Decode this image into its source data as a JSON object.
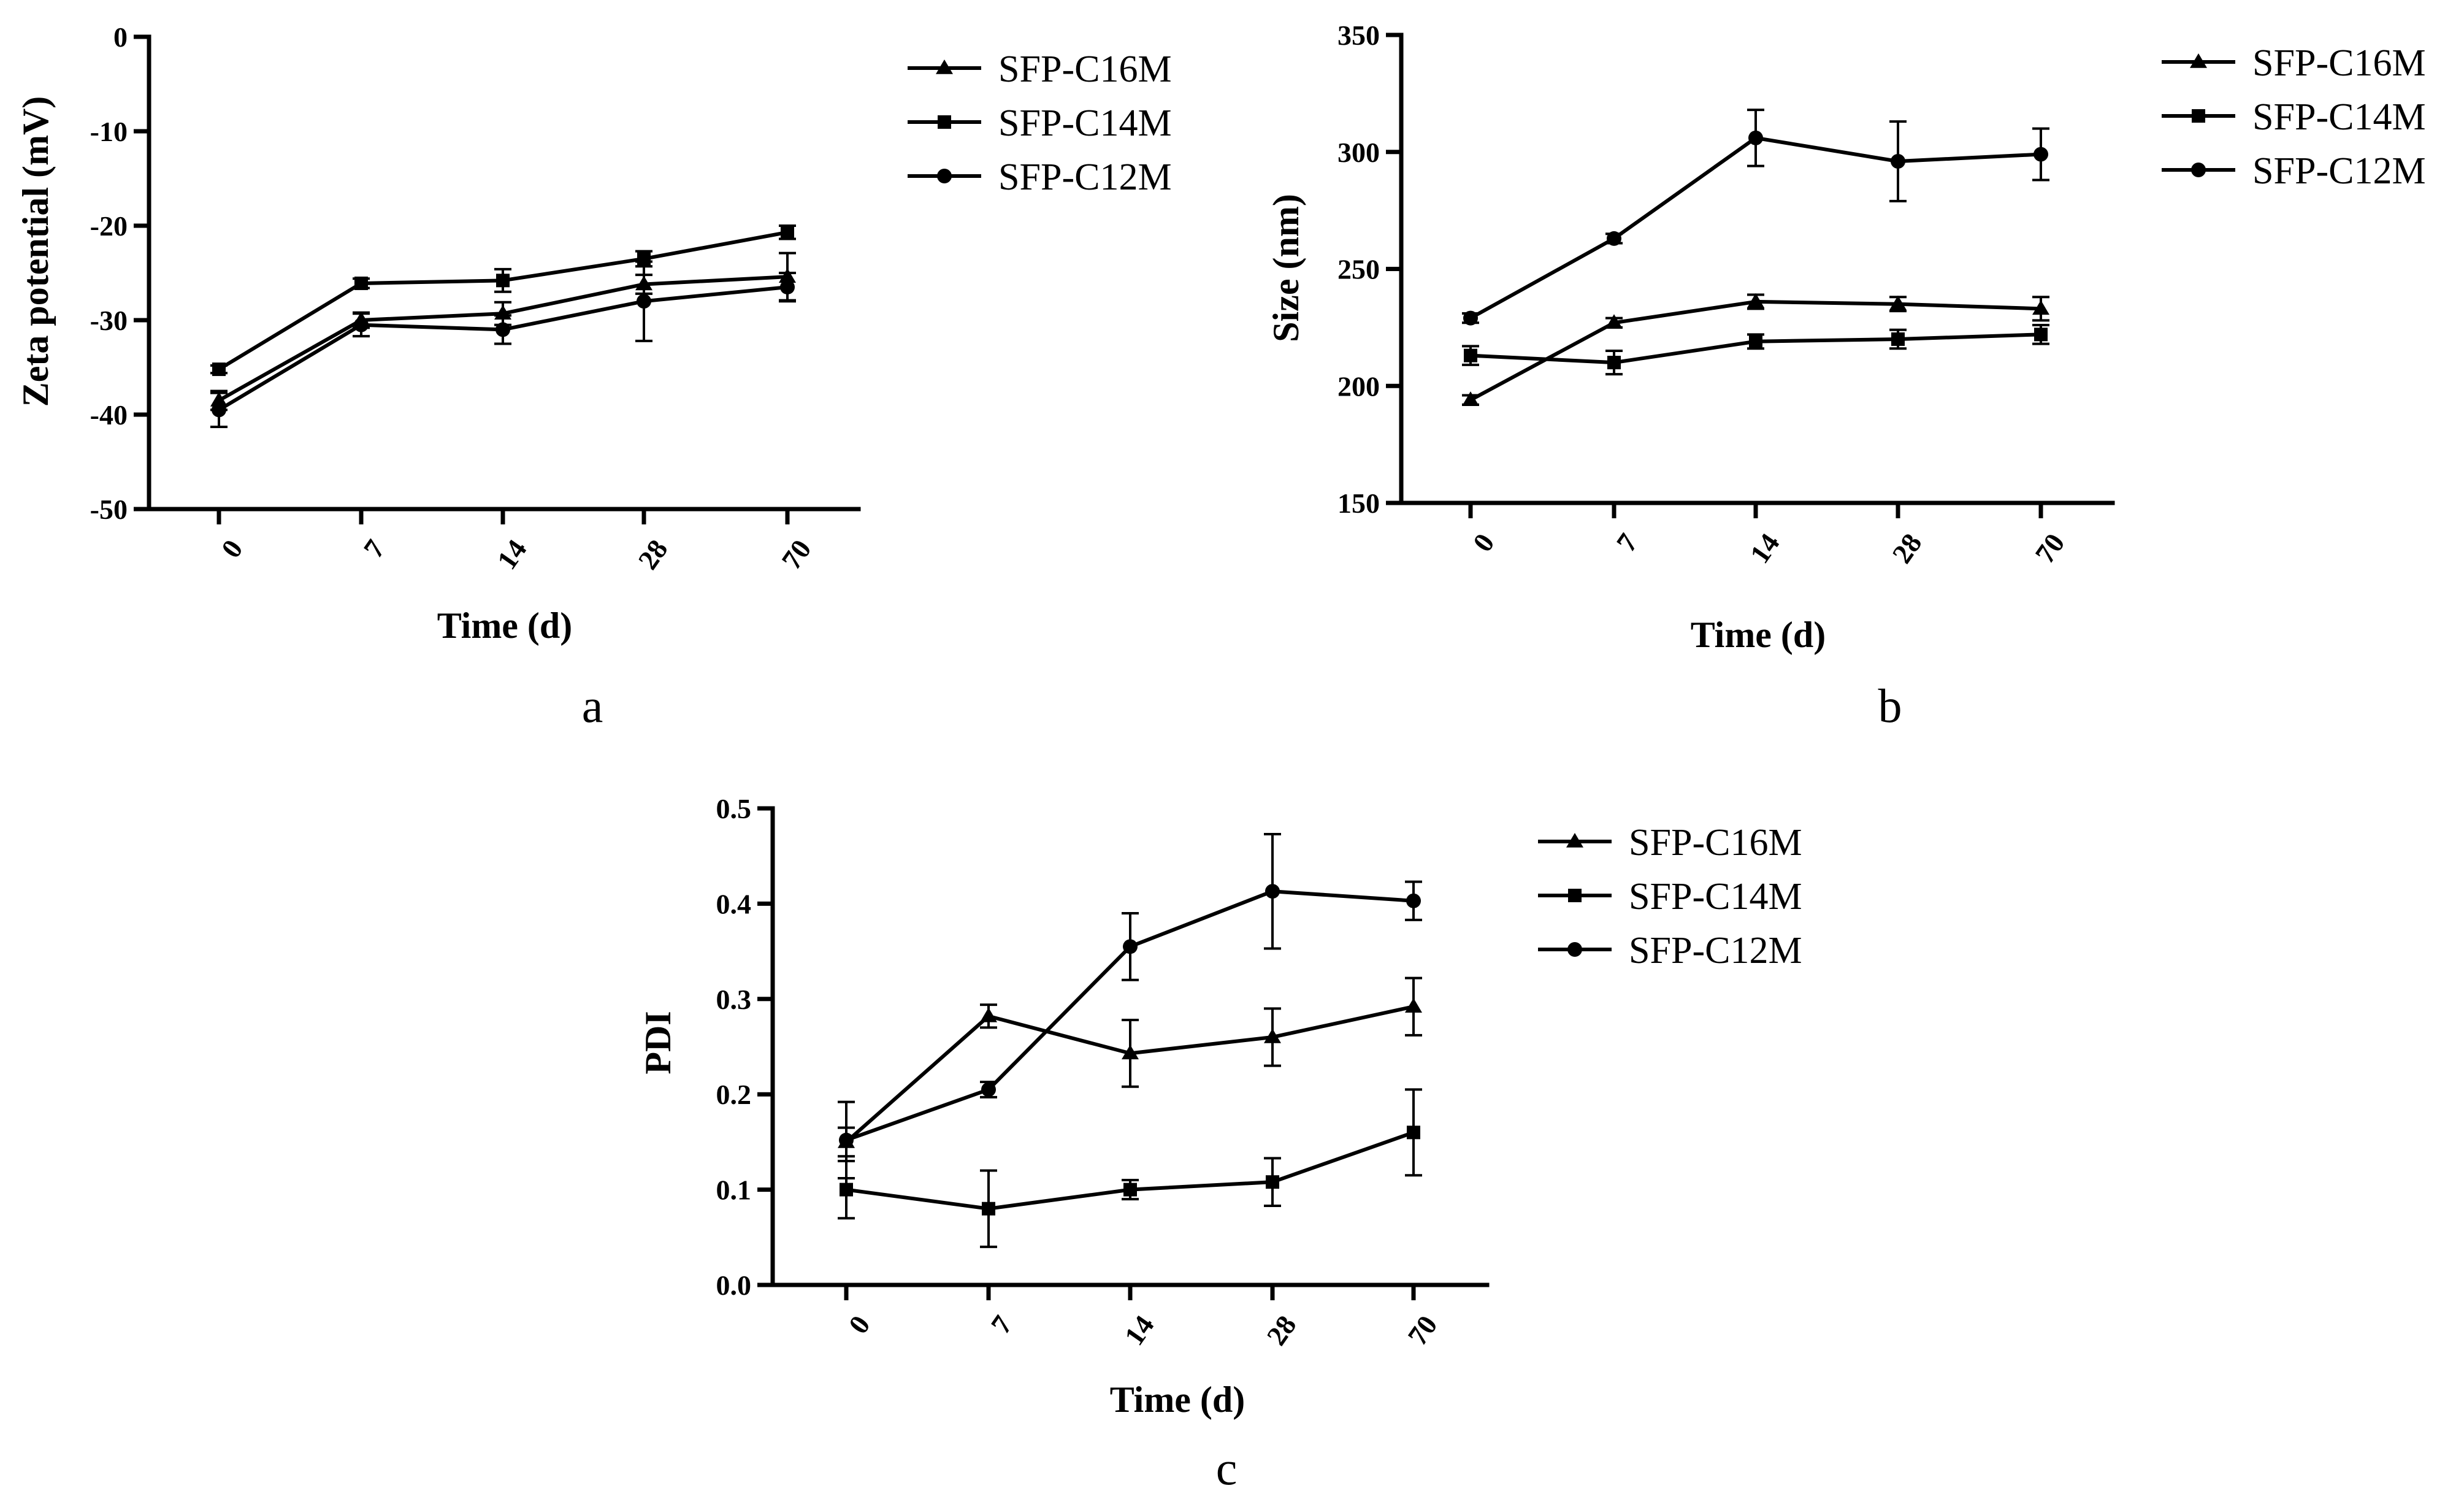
{
  "chart_data": [
    {
      "panel_label": "a",
      "type": "line",
      "xlabel": "Time (d)",
      "ylabel": "Zeta potential (mV)",
      "categories": [
        "0",
        "7",
        "14",
        "28",
        "70"
      ],
      "ylim": [
        -50,
        0
      ],
      "yticks": [
        0,
        -10,
        -20,
        -30,
        -40,
        -50
      ],
      "ytick_labels": [
        "0",
        "-10",
        "-20",
        "-30",
        "-40",
        "-50"
      ],
      "series": [
        {
          "name": "SFP-C16M",
          "marker": "triangle",
          "values": [
            -38.5,
            -30.0,
            -29.3,
            -26.2,
            -25.4
          ],
          "errors": [
            1.0,
            0.8,
            1.2,
            1.0,
            2.5
          ]
        },
        {
          "name": "SFP-C14M",
          "marker": "square",
          "values": [
            -35.2,
            -26.1,
            -25.8,
            -23.5,
            -20.7
          ],
          "errors": [
            0.4,
            0.5,
            1.2,
            0.8,
            0.7
          ]
        },
        {
          "name": "SFP-C12M",
          "marker": "circle",
          "values": [
            -39.5,
            -30.5,
            -31.0,
            -28.0,
            -26.5
          ],
          "errors": [
            1.8,
            1.2,
            1.5,
            4.2,
            1.5
          ]
        }
      ]
    },
    {
      "panel_label": "b",
      "type": "line",
      "xlabel": "Time (d)",
      "ylabel": "Size (nm)",
      "categories": [
        "0",
        "7",
        "14",
        "28",
        "70"
      ],
      "ylim": [
        150,
        350
      ],
      "yticks": [
        150,
        200,
        250,
        300,
        350
      ],
      "ytick_labels": [
        "150",
        "200",
        "250",
        "300",
        "350"
      ],
      "series": [
        {
          "name": "SFP-C16M",
          "marker": "triangle",
          "values": [
            194,
            227,
            236,
            235,
            233
          ],
          "errors": [
            2,
            2,
            3,
            3,
            5
          ]
        },
        {
          "name": "SFP-C14M",
          "marker": "square",
          "values": [
            213,
            210,
            219,
            220,
            222
          ],
          "errors": [
            4,
            5,
            3,
            4,
            4
          ]
        },
        {
          "name": "SFP-C12M",
          "marker": "circle",
          "values": [
            229,
            263,
            306,
            296,
            299
          ],
          "errors": [
            2,
            2,
            12,
            17,
            11
          ]
        }
      ]
    },
    {
      "panel_label": "c",
      "type": "line",
      "xlabel": "Time (d)",
      "ylabel": "PDI",
      "categories": [
        "0",
        "7",
        "14",
        "28",
        "70"
      ],
      "ylim": [
        0.0,
        0.5
      ],
      "yticks": [
        0.0,
        0.1,
        0.2,
        0.3,
        0.4,
        0.5
      ],
      "ytick_labels": [
        "0.0",
        "0.1",
        "0.2",
        "0.3",
        "0.4",
        "0.5"
      ],
      "series": [
        {
          "name": "SFP-C16M",
          "marker": "triangle",
          "values": [
            0.15,
            0.282,
            0.243,
            0.26,
            0.292
          ],
          "errors": [
            0.015,
            0.012,
            0.035,
            0.03,
            0.03
          ]
        },
        {
          "name": "SFP-C14M",
          "marker": "square",
          "values": [
            0.1,
            0.08,
            0.1,
            0.108,
            0.16
          ],
          "errors": [
            0.03,
            0.04,
            0.01,
            0.025,
            0.045
          ]
        },
        {
          "name": "SFP-C12M",
          "marker": "circle",
          "values": [
            0.152,
            0.205,
            0.355,
            0.413,
            0.403
          ],
          "errors": [
            0.04,
            0.008,
            0.035,
            0.06,
            0.02
          ]
        }
      ]
    }
  ]
}
